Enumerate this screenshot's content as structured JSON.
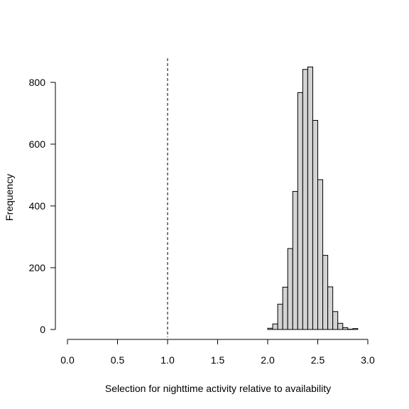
{
  "chart_data": {
    "type": "bar",
    "subtype": "histogram",
    "title": "",
    "xlabel": "Selection for nighttime activity relative to availability",
    "ylabel": "Frequency",
    "xlim": [
      0,
      3
    ],
    "ylim": [
      0,
      850
    ],
    "x_ticks": [
      "0.0",
      "0.5",
      "1.0",
      "1.5",
      "2.0",
      "2.5",
      "3.0"
    ],
    "y_ticks": [
      "0",
      "200",
      "400",
      "600",
      "800"
    ],
    "bin_width": 0.05,
    "bins": [
      {
        "start": 2.0,
        "end": 2.05,
        "count": 4
      },
      {
        "start": 2.05,
        "end": 2.1,
        "count": 18
      },
      {
        "start": 2.1,
        "end": 2.15,
        "count": 82
      },
      {
        "start": 2.15,
        "end": 2.2,
        "count": 137
      },
      {
        "start": 2.2,
        "end": 2.25,
        "count": 262
      },
      {
        "start": 2.25,
        "end": 2.3,
        "count": 447
      },
      {
        "start": 2.3,
        "end": 2.35,
        "count": 767
      },
      {
        "start": 2.35,
        "end": 2.4,
        "count": 842
      },
      {
        "start": 2.4,
        "end": 2.45,
        "count": 850
      },
      {
        "start": 2.45,
        "end": 2.5,
        "count": 677
      },
      {
        "start": 2.5,
        "end": 2.55,
        "count": 485
      },
      {
        "start": 2.55,
        "end": 2.6,
        "count": 240
      },
      {
        "start": 2.6,
        "end": 2.65,
        "count": 138
      },
      {
        "start": 2.65,
        "end": 2.7,
        "count": 58
      },
      {
        "start": 2.7,
        "end": 2.75,
        "count": 20
      },
      {
        "start": 2.75,
        "end": 2.8,
        "count": 6
      },
      {
        "start": 2.8,
        "end": 2.85,
        "count": 1
      },
      {
        "start": 2.85,
        "end": 2.9,
        "count": 3
      }
    ],
    "reference_line": {
      "x": 1.0,
      "style": "dashed"
    },
    "bar_fill": "#d3d3d3",
    "bar_stroke": "#000000",
    "grid": false,
    "legend": "none"
  }
}
